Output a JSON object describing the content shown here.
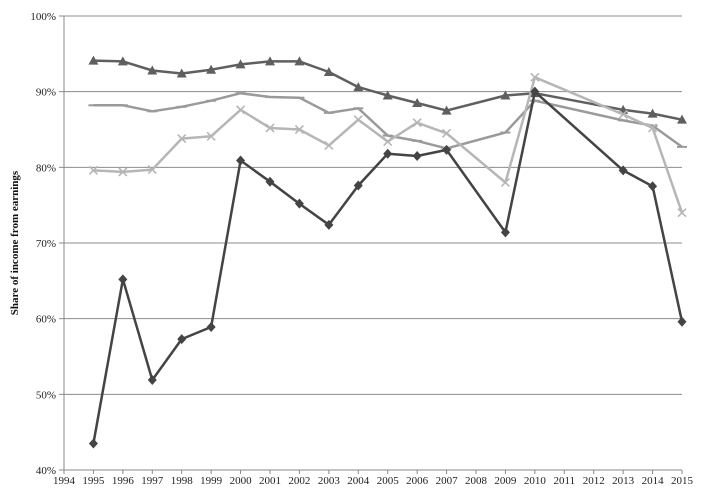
{
  "chart_data": {
    "type": "line",
    "ylabel": "Share of income from earnings",
    "xlabel": "",
    "xlim": [
      1994,
      2015
    ],
    "ylim": [
      40,
      100
    ],
    "y_ticks": [
      {
        "value": 40,
        "label": "40%"
      },
      {
        "value": 50,
        "label": "50%"
      },
      {
        "value": 60,
        "label": "60%"
      },
      {
        "value": 70,
        "label": "70%"
      },
      {
        "value": 80,
        "label": "80%"
      },
      {
        "value": 90,
        "label": "90%"
      },
      {
        "value": 100,
        "label": "100%"
      }
    ],
    "x_ticks": [
      "1994",
      "1995",
      "1996",
      "1997",
      "1998",
      "1999",
      "2000",
      "2001",
      "2002",
      "2003",
      "2004",
      "2005",
      "2006",
      "2007",
      "2008",
      "2009",
      "2010",
      "2011",
      "2012",
      "2013",
      "2014",
      "2015"
    ],
    "grid": "horizontal",
    "legend": "none",
    "series": [
      {
        "marker": "triangle",
        "color": "#5f5f5f",
        "points": [
          [
            1995,
            94.1
          ],
          [
            1996,
            94.0
          ],
          [
            1997,
            92.8
          ],
          [
            1998,
            92.4
          ],
          [
            1999,
            92.9
          ],
          [
            2000,
            93.6
          ],
          [
            2001,
            94.0
          ],
          [
            2002,
            94.0
          ],
          [
            2003,
            92.6
          ],
          [
            2004,
            90.6
          ],
          [
            2005,
            89.5
          ],
          [
            2006,
            88.5
          ],
          [
            2007,
            87.5
          ],
          [
            2009,
            89.5
          ],
          [
            2010,
            89.8
          ],
          [
            2013,
            87.6
          ],
          [
            2014,
            87.1
          ],
          [
            2015,
            86.3
          ]
        ]
      },
      {
        "marker": "dash",
        "color": "#9a9a9a",
        "points": [
          [
            1995,
            88.2
          ],
          [
            1996,
            88.2
          ],
          [
            1997,
            87.4
          ],
          [
            1998,
            88.0
          ],
          [
            1999,
            88.8
          ],
          [
            2000,
            89.8
          ],
          [
            2001,
            89.3
          ],
          [
            2002,
            89.2
          ],
          [
            2003,
            87.2
          ],
          [
            2004,
            87.8
          ],
          [
            2005,
            84.2
          ],
          [
            2006,
            83.5
          ],
          [
            2007,
            82.5
          ],
          [
            2009,
            84.6
          ],
          [
            2010,
            88.8
          ],
          [
            2013,
            86.2
          ],
          [
            2014,
            85.5
          ],
          [
            2015,
            82.7
          ]
        ]
      },
      {
        "marker": "x",
        "color": "#b6b6b6",
        "points": [
          [
            1995,
            79.6
          ],
          [
            1996,
            79.4
          ],
          [
            1997,
            79.7
          ],
          [
            1998,
            83.8
          ],
          [
            1999,
            84.1
          ],
          [
            2000,
            87.6
          ],
          [
            2001,
            85.2
          ],
          [
            2002,
            85.0
          ],
          [
            2003,
            82.9
          ],
          [
            2004,
            86.3
          ],
          [
            2005,
            83.4
          ],
          [
            2006,
            85.9
          ],
          [
            2007,
            84.5
          ],
          [
            2009,
            78.0
          ],
          [
            2010,
            91.9
          ],
          [
            2013,
            87.0
          ],
          [
            2014,
            85.2
          ],
          [
            2015,
            74.0
          ]
        ]
      },
      {
        "marker": "diamond",
        "color": "#444444",
        "points": [
          [
            1995,
            43.5
          ],
          [
            1996,
            65.2
          ],
          [
            1997,
            51.9
          ],
          [
            1998,
            57.3
          ],
          [
            1999,
            58.9
          ],
          [
            2000,
            80.9
          ],
          [
            2001,
            78.1
          ],
          [
            2002,
            75.2
          ],
          [
            2003,
            72.4
          ],
          [
            2004,
            77.6
          ],
          [
            2005,
            81.8
          ],
          [
            2006,
            81.5
          ],
          [
            2007,
            82.3
          ],
          [
            2009,
            71.4
          ],
          [
            2010,
            90.0
          ],
          [
            2013,
            79.6
          ],
          [
            2014,
            77.5
          ],
          [
            2015,
            59.6
          ]
        ]
      }
    ]
  }
}
